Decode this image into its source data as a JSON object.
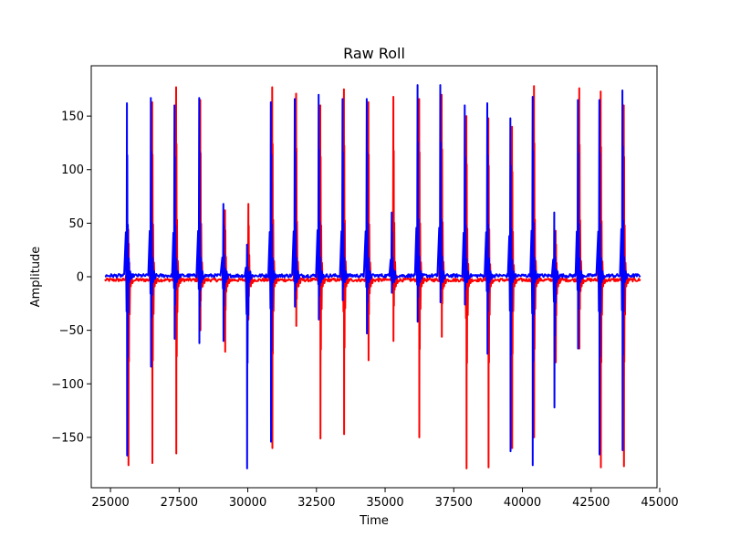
{
  "chart_data": {
    "type": "line",
    "title": "Raw Roll",
    "xlabel": "Time",
    "ylabel": "Amplitude",
    "xlim": [
      24300,
      44900
    ],
    "ylim": [
      -197,
      197
    ],
    "xticks": [
      25000,
      27500,
      30000,
      32500,
      35000,
      37500,
      40000,
      42500,
      45000
    ],
    "yticks": [
      -150,
      -100,
      -50,
      0,
      50,
      100,
      150
    ],
    "xtick_labels": [
      "25000",
      "27500",
      "30000",
      "32500",
      "35000",
      "37500",
      "40000",
      "42500",
      "45000"
    ],
    "ytick_labels": [
      "−150",
      "−100",
      "−50",
      "0",
      "50",
      "100",
      "150"
    ],
    "x_range": [
      24800,
      44300
    ],
    "grid": false,
    "series": [
      {
        "color": "#ff0000",
        "baseline": -3,
        "noise": 1.5,
        "spikes": [
          {
            "x": 25650,
            "max": 44,
            "min": -176
          },
          {
            "x": 26520,
            "max": 163,
            "min": -174
          },
          {
            "x": 27390,
            "max": 177,
            "min": -165
          },
          {
            "x": 28270,
            "max": 165,
            "min": -50
          },
          {
            "x": 29170,
            "max": 62,
            "min": -70
          },
          {
            "x": 30020,
            "max": 68,
            "min": -40
          },
          {
            "x": 30890,
            "max": 177,
            "min": -160
          },
          {
            "x": 31760,
            "max": 171,
            "min": -46
          },
          {
            "x": 32640,
            "max": 160,
            "min": -151
          },
          {
            "x": 33500,
            "max": 175,
            "min": -147
          },
          {
            "x": 34390,
            "max": 163,
            "min": -78
          },
          {
            "x": 35300,
            "max": 168,
            "min": -60
          },
          {
            "x": 36240,
            "max": 166,
            "min": -150
          },
          {
            "x": 37060,
            "max": 170,
            "min": -56
          },
          {
            "x": 37960,
            "max": 150,
            "min": -179
          },
          {
            "x": 38760,
            "max": 148,
            "min": -178
          },
          {
            "x": 39620,
            "max": 140,
            "min": -160
          },
          {
            "x": 40420,
            "max": 178,
            "min": -150
          },
          {
            "x": 41210,
            "max": 43,
            "min": -80
          },
          {
            "x": 42070,
            "max": 176,
            "min": -67
          },
          {
            "x": 42850,
            "max": 173,
            "min": -178
          },
          {
            "x": 43690,
            "max": 160,
            "min": -177
          }
        ]
      },
      {
        "color": "#0000ff",
        "baseline": 1,
        "noise": 1.6,
        "spikes": [
          {
            "x": 25600,
            "max": 162,
            "min": -167
          },
          {
            "x": 26470,
            "max": 167,
            "min": -84
          },
          {
            "x": 27330,
            "max": 160,
            "min": -58
          },
          {
            "x": 28230,
            "max": 167,
            "min": -62
          },
          {
            "x": 29110,
            "max": 68,
            "min": -60
          },
          {
            "x": 29970,
            "max": 30,
            "min": -179
          },
          {
            "x": 30840,
            "max": 163,
            "min": -154
          },
          {
            "x": 31710,
            "max": 166,
            "min": -28
          },
          {
            "x": 32580,
            "max": 170,
            "min": -40
          },
          {
            "x": 33450,
            "max": 166,
            "min": -22
          },
          {
            "x": 34330,
            "max": 166,
            "min": -53
          },
          {
            "x": 35240,
            "max": 60,
            "min": -15
          },
          {
            "x": 36180,
            "max": 179,
            "min": -42
          },
          {
            "x": 37010,
            "max": 179,
            "min": -24
          },
          {
            "x": 37900,
            "max": 160,
            "min": -26
          },
          {
            "x": 38720,
            "max": 162,
            "min": -72
          },
          {
            "x": 39560,
            "max": 148,
            "min": -163
          },
          {
            "x": 40370,
            "max": 168,
            "min": -176
          },
          {
            "x": 41160,
            "max": 60,
            "min": -122
          },
          {
            "x": 42020,
            "max": 165,
            "min": -67
          },
          {
            "x": 42800,
            "max": 165,
            "min": -166
          },
          {
            "x": 43640,
            "max": 174,
            "min": -162
          }
        ]
      }
    ]
  }
}
